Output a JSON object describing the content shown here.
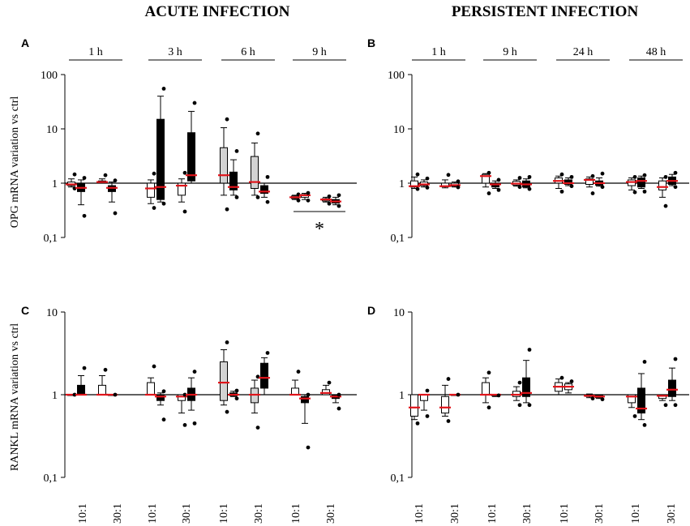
{
  "figure": {
    "column_titles": [
      "ACUTE INFECTION",
      "PERSISTENT INFECTION"
    ],
    "ratio_labels": [
      "10:1",
      "30:1"
    ],
    "legend_note": "",
    "colors": {
      "axis": "#000000",
      "gray_box": "#d3d3d3",
      "black_box": "#000000",
      "white_box": "#ffffff",
      "median": "#e0141a"
    }
  },
  "chart_data": [
    {
      "panel": "A",
      "type": "box",
      "ylabel": "OPG mRNA variation vs ctrl",
      "yscale": "log",
      "ylim": [
        0.1,
        100
      ],
      "yticks": [
        0.1,
        1,
        10,
        100
      ],
      "ytick_labels": [
        "0,1",
        "1",
        "10",
        "100"
      ],
      "time_labels": [
        "1 h",
        "3 h",
        "6 h",
        "9 h"
      ],
      "annotation": "*",
      "boxes": [
        {
          "time": "1 h",
          "ratio": "10:1",
          "fill": "white",
          "min": 0.85,
          "q1": 0.9,
          "median": 0.95,
          "q3": 1.05,
          "max": 1.2,
          "points": [
            0.8,
            1.45
          ]
        },
        {
          "time": "1 h",
          "ratio": "10:1",
          "fill": "black",
          "min": 0.4,
          "q1": 0.7,
          "median": 0.82,
          "q3": 1.0,
          "max": 1.15,
          "points": [
            0.25,
            1.25
          ]
        },
        {
          "time": "1 h",
          "ratio": "30:1",
          "fill": "white",
          "min": 1.0,
          "q1": 1.02,
          "median": 1.05,
          "q3": 1.1,
          "max": 1.2,
          "points": [
            1.4
          ]
        },
        {
          "time": "1 h",
          "ratio": "30:1",
          "fill": "black",
          "min": 0.45,
          "q1": 0.7,
          "median": 0.82,
          "q3": 0.9,
          "max": 1.05,
          "points": [
            0.28,
            1.12
          ]
        },
        {
          "time": "3 h",
          "ratio": "10:1",
          "fill": "white",
          "min": 0.42,
          "q1": 0.55,
          "median": 0.8,
          "q3": 1.0,
          "max": 1.15,
          "points": [
            0.35,
            1.5
          ]
        },
        {
          "time": "3 h",
          "ratio": "10:1",
          "fill": "black",
          "min": 0.45,
          "q1": 0.5,
          "median": 0.85,
          "q3": 15,
          "max": 40,
          "points": [
            0.42,
            55
          ]
        },
        {
          "time": "3 h",
          "ratio": "30:1",
          "fill": "white",
          "min": 0.45,
          "q1": 0.6,
          "median": 0.9,
          "q3": 1.0,
          "max": 1.2,
          "points": [
            0.3,
            1.55
          ]
        },
        {
          "time": "3 h",
          "ratio": "30:1",
          "fill": "black",
          "min": 1.0,
          "q1": 1.1,
          "median": 1.4,
          "q3": 8.5,
          "max": 21,
          "points": [
            30
          ]
        },
        {
          "time": "6 h",
          "ratio": "10:1",
          "fill": "gray",
          "min": 0.6,
          "q1": 1.0,
          "median": 1.4,
          "q3": 4.5,
          "max": 10.5,
          "points": [
            0.33,
            15
          ]
        },
        {
          "time": "6 h",
          "ratio": "10:1",
          "fill": "black",
          "min": 0.6,
          "q1": 0.75,
          "median": 0.85,
          "q3": 1.6,
          "max": 2.7,
          "points": [
            0.55,
            3.9
          ]
        },
        {
          "time": "6 h",
          "ratio": "30:1",
          "fill": "gray",
          "min": 0.6,
          "q1": 0.8,
          "median": 1.05,
          "q3": 3.1,
          "max": 5.5,
          "points": [
            0.55,
            8.2
          ]
        },
        {
          "time": "6 h",
          "ratio": "30:1",
          "fill": "black",
          "min": 0.55,
          "q1": 0.65,
          "median": 0.7,
          "q3": 0.9,
          "max": 1.0,
          "points": [
            0.45,
            1.3
          ]
        },
        {
          "time": "9 h",
          "ratio": "10:1",
          "fill": "white",
          "min": 0.5,
          "q1": 0.52,
          "median": 0.55,
          "q3": 0.58,
          "max": 0.6,
          "points": [
            0.48,
            0.62
          ]
        },
        {
          "time": "9 h",
          "ratio": "10:1",
          "fill": "white",
          "min": 0.5,
          "q1": 0.55,
          "median": 0.6,
          "q3": 0.62,
          "max": 0.65,
          "points": [
            0.48,
            0.66
          ]
        },
        {
          "time": "9 h",
          "ratio": "30:1",
          "fill": "white",
          "min": 0.45,
          "q1": 0.47,
          "median": 0.5,
          "q3": 0.52,
          "max": 0.55,
          "points": [
            0.42,
            0.57
          ]
        },
        {
          "time": "9 h",
          "ratio": "30:1",
          "fill": "black",
          "min": 0.4,
          "q1": 0.43,
          "median": 0.46,
          "q3": 0.5,
          "max": 0.55,
          "points": [
            0.38,
            0.6
          ]
        }
      ]
    },
    {
      "panel": "B",
      "type": "box",
      "ylabel": "",
      "yscale": "log",
      "ylim": [
        0.1,
        100
      ],
      "yticks": [
        0.1,
        1,
        10,
        100
      ],
      "ytick_labels": [
        "0,1",
        "1",
        "10",
        "100"
      ],
      "time_labels": [
        "1 h",
        "9 h",
        "24 h",
        "48 h"
      ],
      "boxes": [
        {
          "time": "1 h",
          "ratio": "10:1",
          "fill": "white",
          "min": 0.8,
          "q1": 0.85,
          "median": 0.88,
          "q3": 1.1,
          "max": 1.3,
          "points": [
            0.78,
            1.45
          ]
        },
        {
          "time": "1 h",
          "ratio": "10:1",
          "fill": "white",
          "min": 0.85,
          "q1": 0.9,
          "median": 0.95,
          "q3": 1.05,
          "max": 1.15,
          "points": [
            0.83,
            1.22
          ]
        },
        {
          "time": "1 h",
          "ratio": "30:1",
          "fill": "white",
          "min": 0.82,
          "q1": 0.86,
          "median": 0.88,
          "q3": 1.0,
          "max": 1.15,
          "points": [
            1.42
          ]
        },
        {
          "time": "1 h",
          "ratio": "30:1",
          "fill": "white",
          "min": 0.85,
          "q1": 0.88,
          "median": 0.92,
          "q3": 1.0,
          "max": 1.05,
          "points": [
            0.84,
            1.08
          ]
        },
        {
          "time": "9 h",
          "ratio": "10:1",
          "fill": "white",
          "min": 0.85,
          "q1": 1.0,
          "median": 1.35,
          "q3": 1.45,
          "max": 1.5,
          "points": [
            0.65,
            1.55
          ]
        },
        {
          "time": "9 h",
          "ratio": "10:1",
          "fill": "black",
          "min": 0.8,
          "q1": 0.85,
          "median": 0.95,
          "q3": 1.0,
          "max": 1.1,
          "points": [
            0.75,
            1.15
          ]
        },
        {
          "time": "9 h",
          "ratio": "30:1",
          "fill": "white",
          "min": 0.88,
          "q1": 0.92,
          "median": 0.98,
          "q3": 1.08,
          "max": 1.15,
          "points": [
            0.85,
            1.25
          ]
        },
        {
          "time": "9 h",
          "ratio": "30:1",
          "fill": "black",
          "min": 0.82,
          "q1": 0.85,
          "median": 0.95,
          "q3": 1.1,
          "max": 1.2,
          "points": [
            0.78,
            1.3
          ]
        },
        {
          "time": "24 h",
          "ratio": "10:1",
          "fill": "white",
          "min": 0.8,
          "q1": 1.0,
          "median": 1.1,
          "q3": 1.25,
          "max": 1.35,
          "points": [
            0.7,
            1.45
          ]
        },
        {
          "time": "24 h",
          "ratio": "10:1",
          "fill": "black",
          "min": 0.9,
          "q1": 0.95,
          "median": 1.0,
          "q3": 1.15,
          "max": 1.25,
          "points": [
            0.88,
            1.3
          ]
        },
        {
          "time": "24 h",
          "ratio": "30:1",
          "fill": "white",
          "min": 0.85,
          "q1": 0.95,
          "median": 1.15,
          "q3": 1.2,
          "max": 1.3,
          "points": [
            0.65,
            1.35
          ]
        },
        {
          "time": "24 h",
          "ratio": "30:1",
          "fill": "black",
          "min": 0.88,
          "q1": 0.92,
          "median": 1.0,
          "q3": 1.1,
          "max": 1.25,
          "points": [
            0.85,
            1.5
          ]
        },
        {
          "time": "48 h",
          "ratio": "10:1",
          "fill": "white",
          "min": 0.75,
          "q1": 0.9,
          "median": 1.05,
          "q3": 1.15,
          "max": 1.25,
          "points": [
            0.68,
            1.3
          ]
        },
        {
          "time": "48 h",
          "ratio": "10:1",
          "fill": "black",
          "min": 0.8,
          "q1": 0.85,
          "median": 1.1,
          "q3": 1.25,
          "max": 1.35,
          "points": [
            0.7,
            1.4
          ]
        },
        {
          "time": "48 h",
          "ratio": "30:1",
          "fill": "white",
          "min": 0.55,
          "q1": 0.75,
          "median": 0.85,
          "q3": 1.1,
          "max": 1.25,
          "points": [
            0.38,
            1.3
          ]
        },
        {
          "time": "48 h",
          "ratio": "30:1",
          "fill": "black",
          "min": 0.9,
          "q1": 0.95,
          "median": 1.1,
          "q3": 1.3,
          "max": 1.45,
          "points": [
            0.85,
            1.55
          ]
        }
      ]
    },
    {
      "panel": "C",
      "type": "box",
      "ylabel": "RANKL mRNA variation vs ctrl",
      "yscale": "log",
      "ylim": [
        0.1,
        10
      ],
      "yticks": [
        0.1,
        1,
        10
      ],
      "ytick_labels": [
        "0,1",
        "1",
        "10"
      ],
      "boxes": [
        {
          "time": "1 h",
          "ratio": "10:1",
          "fill": "white",
          "min": 1.0,
          "q1": 1.0,
          "median": 1.0,
          "q3": 1.0,
          "max": 1.0,
          "points": [
            1.0
          ]
        },
        {
          "time": "1 h",
          "ratio": "10:1",
          "fill": "black",
          "min": 1.0,
          "q1": 1.0,
          "median": 1.0,
          "q3": 1.3,
          "max": 1.7,
          "points": [
            2.1
          ]
        },
        {
          "time": "1 h",
          "ratio": "30:1",
          "fill": "white",
          "min": 1.0,
          "q1": 1.0,
          "median": 1.0,
          "q3": 1.3,
          "max": 1.7,
          "points": [
            2.0
          ]
        },
        {
          "time": "1 h",
          "ratio": "30:1",
          "fill": "black",
          "min": 1.0,
          "q1": 1.0,
          "median": 1.0,
          "q3": 1.0,
          "max": 1.0,
          "points": [
            1.0
          ]
        },
        {
          "time": "3 h",
          "ratio": "10:1",
          "fill": "white",
          "min": 1.0,
          "q1": 1.0,
          "median": 1.0,
          "q3": 1.4,
          "max": 1.6,
          "points": [
            2.2
          ]
        },
        {
          "time": "3 h",
          "ratio": "10:1",
          "fill": "black",
          "min": 0.75,
          "q1": 0.85,
          "median": 0.95,
          "q3": 1.0,
          "max": 1.05,
          "points": [
            0.5,
            1.1
          ]
        },
        {
          "time": "3 h",
          "ratio": "30:1",
          "fill": "white",
          "min": 0.6,
          "q1": 0.85,
          "median": 0.95,
          "q3": 1.0,
          "max": 1.0,
          "points": [
            0.43,
            1.0
          ]
        },
        {
          "time": "3 h",
          "ratio": "30:1",
          "fill": "black",
          "min": 0.65,
          "q1": 0.85,
          "median": 1.0,
          "q3": 1.2,
          "max": 1.6,
          "points": [
            0.45,
            1.9
          ]
        },
        {
          "time": "6 h",
          "ratio": "10:1",
          "fill": "gray",
          "min": 0.75,
          "q1": 0.85,
          "median": 1.4,
          "q3": 2.5,
          "max": 3.5,
          "points": [
            0.62,
            4.3
          ]
        },
        {
          "time": "6 h",
          "ratio": "10:1",
          "fill": "black",
          "min": 0.95,
          "q1": 0.97,
          "median": 1.0,
          "q3": 1.05,
          "max": 1.1,
          "points": [
            0.9,
            1.12
          ]
        },
        {
          "time": "6 h",
          "ratio": "30:1",
          "fill": "gray",
          "min": 0.6,
          "q1": 0.8,
          "median": 1.0,
          "q3": 1.2,
          "max": 1.5,
          "points": [
            0.4,
            1.65
          ]
        },
        {
          "time": "6 h",
          "ratio": "30:1",
          "fill": "black",
          "min": 1.0,
          "q1": 1.2,
          "median": 1.6,
          "q3": 2.4,
          "max": 2.8,
          "points": [
            3.2
          ]
        },
        {
          "time": "9 h",
          "ratio": "10:1",
          "fill": "white",
          "min": 1.0,
          "q1": 1.0,
          "median": 1.0,
          "q3": 1.2,
          "max": 1.5,
          "points": [
            1.9
          ]
        },
        {
          "time": "9 h",
          "ratio": "10:1",
          "fill": "black",
          "min": 0.45,
          "q1": 0.8,
          "median": 0.9,
          "q3": 0.95,
          "max": 1.0,
          "points": [
            0.23,
            1.0
          ]
        },
        {
          "time": "9 h",
          "ratio": "30:1",
          "fill": "white",
          "min": 1.0,
          "q1": 1.0,
          "median": 1.05,
          "q3": 1.15,
          "max": 1.3,
          "points": [
            1.4
          ]
        },
        {
          "time": "9 h",
          "ratio": "30:1",
          "fill": "black",
          "min": 0.8,
          "q1": 0.9,
          "median": 0.95,
          "q3": 1.0,
          "max": 1.0,
          "points": [
            0.68,
            1.0
          ]
        }
      ]
    },
    {
      "panel": "D",
      "type": "box",
      "ylabel": "",
      "yscale": "log",
      "ylim": [
        0.1,
        10
      ],
      "yticks": [
        0.1,
        1,
        10
      ],
      "ytick_labels": [
        "0,1",
        "1",
        "10"
      ],
      "boxes": [
        {
          "time": "1 h",
          "ratio": "10:1",
          "fill": "white",
          "min": 0.5,
          "q1": 0.55,
          "median": 0.7,
          "q3": 1.0,
          "max": 1.0,
          "points": [
            0.45
          ]
        },
        {
          "time": "1 h",
          "ratio": "10:1",
          "fill": "white",
          "min": 0.65,
          "q1": 0.85,
          "median": 1.0,
          "q3": 1.0,
          "max": 1.0,
          "points": [
            0.55,
            1.12
          ]
        },
        {
          "time": "1 h",
          "ratio": "30:1",
          "fill": "white",
          "min": 0.55,
          "q1": 0.6,
          "median": 0.7,
          "q3": 0.95,
          "max": 1.3,
          "points": [
            0.48,
            1.55
          ]
        },
        {
          "time": "1 h",
          "ratio": "30:1",
          "fill": "white",
          "min": 1.0,
          "q1": 1.0,
          "median": 1.0,
          "q3": 1.0,
          "max": 1.0,
          "points": [
            1.0
          ]
        },
        {
          "time": "9 h",
          "ratio": "10:1",
          "fill": "white",
          "min": 0.8,
          "q1": 1.0,
          "median": 1.0,
          "q3": 1.4,
          "max": 1.6,
          "points": [
            0.7,
            1.85
          ]
        },
        {
          "time": "9 h",
          "ratio": "10:1",
          "fill": "white",
          "min": 0.95,
          "q1": 0.97,
          "median": 1.0,
          "q3": 1.0,
          "max": 1.0,
          "points": [
            0.98
          ]
        },
        {
          "time": "9 h",
          "ratio": "30:1",
          "fill": "white",
          "min": 0.85,
          "q1": 0.95,
          "median": 1.0,
          "q3": 1.1,
          "max": 1.25,
          "points": [
            0.75,
            1.4
          ]
        },
        {
          "time": "9 h",
          "ratio": "30:1",
          "fill": "black",
          "min": 0.8,
          "q1": 0.95,
          "median": 1.05,
          "q3": 1.6,
          "max": 2.6,
          "points": [
            0.75,
            3.5
          ]
        },
        {
          "time": "24 h",
          "ratio": "10:1",
          "fill": "white",
          "min": 1.0,
          "q1": 1.1,
          "median": 1.25,
          "q3": 1.4,
          "max": 1.55,
          "points": [
            1.6
          ]
        },
        {
          "time": "24 h",
          "ratio": "10:1",
          "fill": "white",
          "min": 1.05,
          "q1": 1.15,
          "median": 1.25,
          "q3": 1.35,
          "max": 1.4,
          "points": [
            1.45
          ]
        },
        {
          "time": "24 h",
          "ratio": "30:1",
          "fill": "white",
          "min": 0.92,
          "q1": 0.95,
          "median": 0.97,
          "q3": 1.0,
          "max": 1.02,
          "points": [
            0.9
          ]
        },
        {
          "time": "24 h",
          "ratio": "30:1",
          "fill": "white",
          "min": 0.9,
          "q1": 0.92,
          "median": 0.95,
          "q3": 0.98,
          "max": 1.0,
          "points": [
            0.88
          ]
        },
        {
          "time": "48 h",
          "ratio": "10:1",
          "fill": "white",
          "min": 0.7,
          "q1": 0.8,
          "median": 0.95,
          "q3": 1.0,
          "max": 1.0,
          "points": [
            0.55
          ]
        },
        {
          "time": "48 h",
          "ratio": "10:1",
          "fill": "black",
          "min": 0.5,
          "q1": 0.6,
          "median": 0.68,
          "q3": 1.2,
          "max": 1.8,
          "points": [
            0.43,
            2.5
          ]
        },
        {
          "time": "48 h",
          "ratio": "30:1",
          "fill": "white",
          "min": 0.85,
          "q1": 0.9,
          "median": 0.97,
          "q3": 1.0,
          "max": 1.0,
          "points": [
            0.75
          ]
        },
        {
          "time": "48 h",
          "ratio": "30:1",
          "fill": "black",
          "min": 0.85,
          "q1": 0.95,
          "median": 1.15,
          "q3": 1.5,
          "max": 2.1,
          "points": [
            0.75,
            2.7
          ]
        }
      ]
    }
  ]
}
